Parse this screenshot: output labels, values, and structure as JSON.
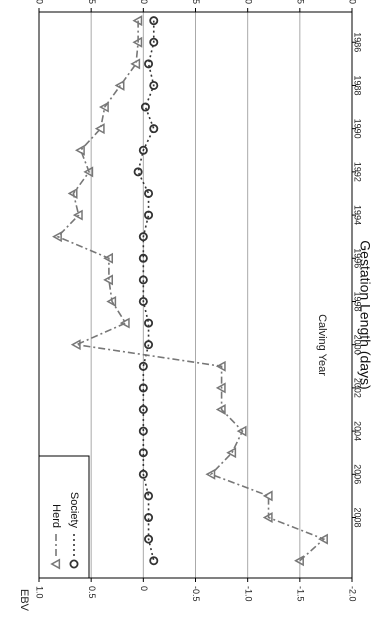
{
  "chart_data": {
    "type": "line",
    "title": "Gestation Length (days)",
    "xlabel": "Calving Year",
    "ylabel": "EBV",
    "orientation": "rotated-90-clockwise",
    "xlim": [
      1984.6,
      2010.8
    ],
    "ylim": [
      -2.0,
      1.0
    ],
    "x_ticks": [
      1986,
      1988,
      1990,
      1992,
      1994,
      1996,
      1998,
      2000,
      2002,
      2004,
      2006,
      2008
    ],
    "y_ticks": [
      1.0,
      0.5,
      0.0,
      -0.5,
      -1.0,
      -1.5,
      -2.0
    ],
    "y_tick_labels": [
      "1.0",
      "0.5",
      "0",
      "-0.5",
      "-1.0",
      "-1.5",
      "-2.0"
    ],
    "grid": "horizontal at 0.5, 0, -0.5, -1.0, -1.5",
    "legend_position": "bottom-left",
    "series": [
      {
        "name": "Society",
        "marker": "circle",
        "line_style": "dotted",
        "color": "#333333",
        "x": [
          1985,
          1986,
          1987,
          1988,
          1989,
          1990,
          1991,
          1992,
          1993,
          1994,
          1995,
          1996,
          1997,
          1998,
          1999,
          2000,
          2001,
          2002,
          2003,
          2004,
          2005,
          2006,
          2007,
          2008,
          2009,
          2010
        ],
        "values": [
          -0.1,
          -0.1,
          -0.05,
          -0.1,
          -0.02,
          -0.1,
          0.0,
          0.05,
          -0.05,
          -0.05,
          0.0,
          0.0,
          0.0,
          0.0,
          -0.05,
          -0.05,
          0.0,
          0.0,
          0.0,
          0.0,
          0.0,
          0.0,
          -0.05,
          -0.05,
          -0.05,
          -0.1
        ]
      },
      {
        "name": "Herd",
        "marker": "triangle",
        "line_style": "dash-dot",
        "color": "#777777",
        "x": [
          1985,
          1986,
          1987,
          1988,
          1989,
          1990,
          1991,
          1992,
          1993,
          1994,
          1995,
          1996,
          1997,
          1998,
          1999,
          2000,
          2001,
          2002,
          2003,
          2004,
          2005,
          2006,
          2007,
          2008,
          2009,
          2010
        ],
        "values": [
          0.05,
          0.05,
          0.07,
          0.22,
          0.37,
          0.41,
          0.6,
          0.52,
          0.67,
          0.62,
          0.82,
          0.33,
          0.33,
          0.3,
          0.17,
          0.64,
          -0.75,
          -0.75,
          -0.75,
          -0.95,
          -0.85,
          -0.65,
          -1.2,
          -1.2,
          -1.73,
          -1.5
        ]
      }
    ]
  }
}
